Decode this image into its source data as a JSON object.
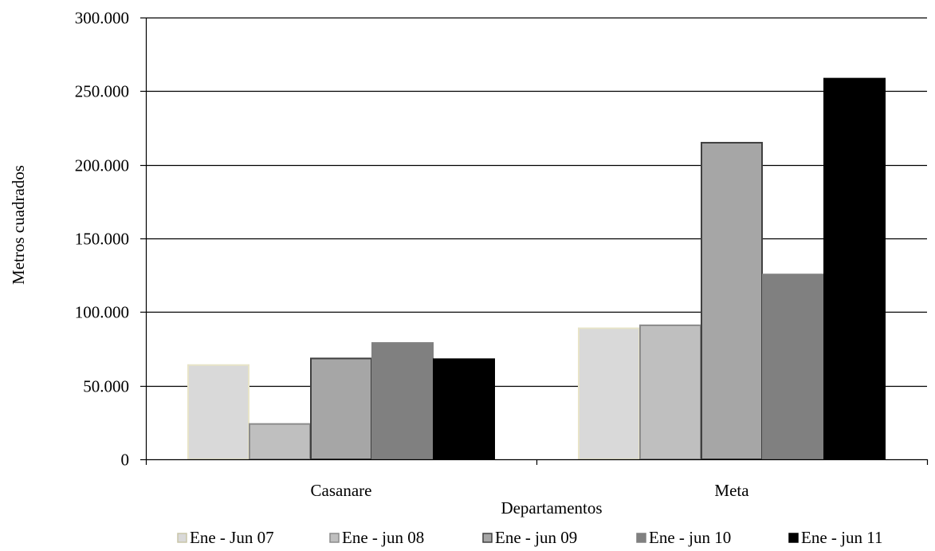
{
  "chart_data": {
    "type": "bar",
    "title": "",
    "xlabel": "Departamentos",
    "ylabel": "Metros  cuadrados",
    "ylim": [
      0,
      300000
    ],
    "yticks": [
      {
        "value": 0,
        "label": "0"
      },
      {
        "value": 50000,
        "label": "50.000"
      },
      {
        "value": 100000,
        "label": "100.000"
      },
      {
        "value": 150000,
        "label": "150.000"
      },
      {
        "value": 200000,
        "label": "200.000"
      },
      {
        "value": 250000,
        "label": "250.000"
      },
      {
        "value": 300000,
        "label": "300.000"
      }
    ],
    "grid": true,
    "legend_position": "bottom",
    "categories": [
      "Casanare",
      "Meta"
    ],
    "series": [
      {
        "name": "Ene - Jun 07",
        "fill": "#d9d9d9",
        "stroke": "#e8e4c8",
        "values": [
          64000,
          89000
        ]
      },
      {
        "name": "Ene - jun 08",
        "fill": "#bfbfbf",
        "stroke": "#8c8c8c",
        "values": [
          24000,
          91000
        ]
      },
      {
        "name": "Ene - jun 09",
        "fill": "#a6a6a6",
        "stroke": "#404040",
        "values": [
          68500,
          215000
        ]
      },
      {
        "name": "Ene - jun 10",
        "fill": "#808080",
        "stroke": "#808080",
        "values": [
          79000,
          125500
        ]
      },
      {
        "name": "Ene - jun 11",
        "fill": "#000000",
        "stroke": "#000000",
        "values": [
          68000,
          258500
        ]
      }
    ]
  }
}
